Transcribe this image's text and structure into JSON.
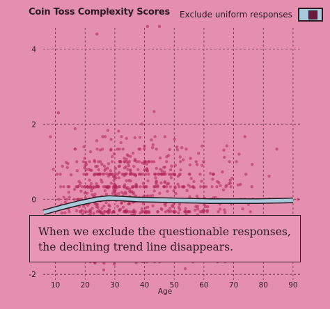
{
  "title": "Coin Toss Complexity Scores",
  "toggle": {
    "label": "Exclude uniform responses",
    "checked": true
  },
  "callout": "When we exclude the questionable responses, the declining trend line disappears.",
  "colors": {
    "background": "#e48fad",
    "points": "#b2275a",
    "trend": "#a9c9dc",
    "ink": "#2b1b22"
  },
  "chart_data": {
    "type": "scatter",
    "xlabel": "Age",
    "ylabel": "",
    "xlim": [
      4,
      94
    ],
    "ylim": [
      -2.2,
      4.6
    ],
    "xticks": [
      10,
      20,
      30,
      40,
      50,
      60,
      70,
      80,
      90
    ],
    "yticks": [
      -2,
      0,
      2,
      4
    ],
    "grid": true,
    "points": {
      "density_by_age": [
        [
          8,
          3
        ],
        [
          10,
          6
        ],
        [
          12,
          9
        ],
        [
          14,
          13
        ],
        [
          16,
          20
        ],
        [
          18,
          30
        ],
        [
          20,
          42
        ],
        [
          22,
          52
        ],
        [
          24,
          58
        ],
        [
          26,
          60
        ],
        [
          28,
          58
        ],
        [
          30,
          55
        ],
        [
          32,
          52
        ],
        [
          34,
          50
        ],
        [
          36,
          47
        ],
        [
          38,
          45
        ],
        [
          40,
          43
        ],
        [
          42,
          40
        ],
        [
          44,
          38
        ],
        [
          46,
          35
        ],
        [
          48,
          32
        ],
        [
          50,
          30
        ],
        [
          52,
          27
        ],
        [
          54,
          24
        ],
        [
          56,
          22
        ],
        [
          58,
          19
        ],
        [
          60,
          17
        ],
        [
          62,
          14
        ],
        [
          64,
          12
        ],
        [
          66,
          10
        ],
        [
          68,
          8
        ],
        [
          70,
          7
        ],
        [
          72,
          5
        ],
        [
          74,
          4
        ],
        [
          76,
          3
        ],
        [
          80,
          2
        ],
        [
          84,
          1
        ],
        [
          90,
          1
        ]
      ],
      "y_mean": 0,
      "y_sd": 0.75,
      "outliers": [
        [
          41,
          4.8
        ],
        [
          45,
          4.8
        ],
        [
          24,
          4.4
        ],
        [
          88,
          -1.4
        ],
        [
          11,
          2.3
        ]
      ]
    },
    "series": [
      {
        "type": "trend",
        "x": [
          6,
          12,
          18,
          24,
          28,
          32,
          38,
          44,
          50,
          56,
          62,
          70,
          78,
          86,
          90
        ],
        "y": [
          -0.35,
          -0.22,
          -0.1,
          0.0,
          0.03,
          0.02,
          -0.01,
          -0.02,
          -0.03,
          -0.04,
          -0.05,
          -0.05,
          -0.05,
          -0.04,
          -0.03
        ]
      }
    ]
  }
}
